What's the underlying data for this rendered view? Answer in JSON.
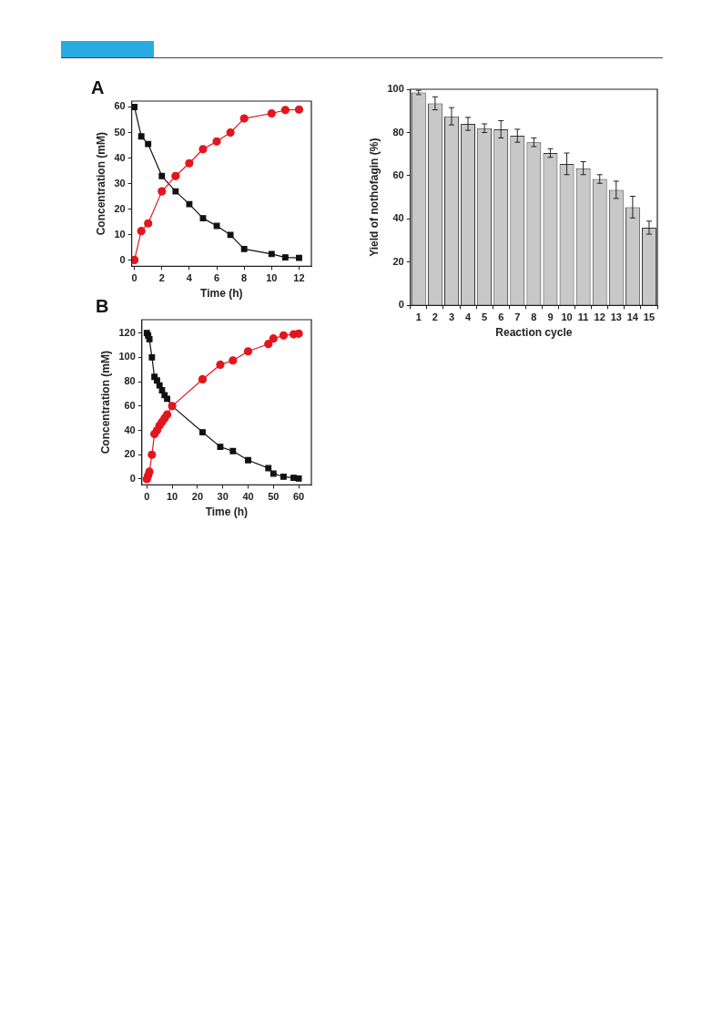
{
  "chart_data": [
    {
      "type": "line",
      "title": "A",
      "xlabel": "Time (h)",
      "ylabel": "Concentration (mM)",
      "x": [
        0,
        0.5,
        1,
        2,
        3,
        4,
        5,
        6,
        7,
        8,
        10,
        11,
        12
      ],
      "xlim": [
        -0.2,
        12.9
      ],
      "xticks": [
        0,
        2,
        4,
        6,
        8,
        10,
        12
      ],
      "ylim": [
        -2.3,
        62.3
      ],
      "yticks": [
        0,
        10,
        20,
        30,
        40,
        50,
        60
      ],
      "grid": false,
      "line_style": "solid",
      "series": [
        {
          "color": "#111111",
          "marker": "square",
          "values": [
            60,
            48.5,
            45.5,
            33,
            27,
            22,
            16.5,
            13.5,
            10,
            4.5,
            2.5,
            1.2,
            1
          ]
        },
        {
          "color": "#e3161d",
          "marker": "circle",
          "values": [
            0.2,
            11.5,
            14.5,
            27,
            33,
            38,
            43.5,
            46.5,
            50,
            55.5,
            57.5,
            58.8,
            59
          ]
        }
      ]
    },
    {
      "type": "line",
      "title": "B",
      "xlabel": "Time (h)",
      "ylabel": "Concentration (mM)",
      "x": [
        0,
        0.5,
        1,
        2,
        3,
        4,
        5,
        6,
        7,
        8,
        10,
        22,
        29,
        34,
        40,
        48,
        50,
        54,
        58,
        60
      ],
      "xlim": [
        -2,
        65
      ],
      "xticks": [
        0,
        10,
        20,
        30,
        40,
        50,
        60
      ],
      "ylim": [
        -4.8,
        131
      ],
      "yticks": [
        0,
        20,
        40,
        60,
        80,
        100,
        120
      ],
      "grid": false,
      "line_style": "solid",
      "series": [
        {
          "color": "#111111",
          "marker": "square",
          "values": [
            120,
            118,
            115,
            100,
            84,
            81,
            77,
            73,
            69,
            66,
            60,
            38.5,
            26.5,
            23,
            15.5,
            9,
            4.5,
            2,
            1,
            0.5
          ]
        },
        {
          "color": "#e3161d",
          "marker": "circle",
          "values": [
            0,
            3,
            6,
            20,
            37,
            40,
            44,
            47,
            50,
            53,
            60,
            82,
            94,
            97.5,
            105,
            111,
            115.5,
            118,
            119,
            119.5
          ]
        }
      ]
    },
    {
      "type": "bar",
      "xlabel": "Reaction cycle",
      "ylabel": "Yield of nothofagin (%)",
      "categories": [
        "1",
        "2",
        "3",
        "4",
        "5",
        "6",
        "7",
        "8",
        "9",
        "10",
        "11",
        "12",
        "13",
        "14",
        "15"
      ],
      "color": "#c8c8c8",
      "ylim": [
        0,
        100
      ],
      "yticks": [
        0,
        20,
        40,
        60,
        80,
        100
      ],
      "grid": false,
      "values": [
        98.5,
        93.5,
        87.5,
        84,
        82,
        81.5,
        78.5,
        75.5,
        70.5,
        65.5,
        63.5,
        58.5,
        53.5,
        45.5,
        36
      ],
      "errors": [
        1,
        3,
        4,
        3,
        2,
        4,
        3,
        2,
        2,
        5,
        3,
        2,
        4,
        5,
        3
      ]
    }
  ]
}
